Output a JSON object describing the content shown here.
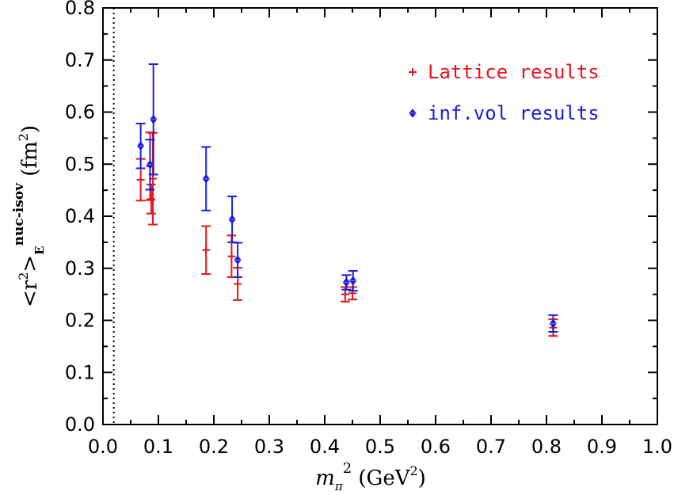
{
  "chart_data": {
    "type": "scatter",
    "title": "",
    "xlabel": {
      "base": "m",
      "sub": "π",
      "sup": "2",
      "units": " (GeV",
      "units_sup": "2",
      "units_close": ")"
    },
    "ylabel": {
      "open": "<r",
      "sup1": "2",
      "close": ">",
      "sub": "E",
      "sup2": "nuc-isov",
      "units": " (fm",
      "units_sup": "2",
      "units_close": ")"
    },
    "xlim": [
      0,
      1.0
    ],
    "ylim": [
      0,
      0.8
    ],
    "x_ticks": [
      "0.0",
      "0.1",
      "0.2",
      "0.3",
      "0.4",
      "0.5",
      "0.6",
      "0.7",
      "0.8",
      "0.9",
      "1.0"
    ],
    "y_ticks": [
      "0.0",
      "0.1",
      "0.2",
      "0.3",
      "0.4",
      "0.5",
      "0.6",
      "0.7",
      "0.8"
    ],
    "grid": false,
    "vertical_line": {
      "x": 0.0195,
      "style": "dotted"
    },
    "legend_position": "top-right",
    "series": [
      {
        "name": "Lattice results",
        "marker": "plus",
        "color": "#e8141c",
        "points": [
          {
            "x": 0.068,
            "y": 0.47,
            "yerr": 0.04
          },
          {
            "x": 0.085,
            "y": 0.496,
            "yerr": 0.065
          },
          {
            "x": 0.09,
            "y": 0.472,
            "yerr": 0.088
          },
          {
            "x": 0.087,
            "y": 0.433,
            "yerr": 0.028
          },
          {
            "x": 0.186,
            "y": 0.335,
            "yerr": 0.046
          },
          {
            "x": 0.232,
            "y": 0.323,
            "yerr": 0.04
          },
          {
            "x": 0.243,
            "y": 0.27,
            "yerr": 0.031
          },
          {
            "x": 0.437,
            "y": 0.25,
            "yerr": 0.014
          },
          {
            "x": 0.45,
            "y": 0.252,
            "yerr": 0.012
          },
          {
            "x": 0.812,
            "y": 0.186,
            "yerr": 0.016
          }
        ]
      },
      {
        "name": "inf.vol results",
        "marker": "diamond",
        "color": "#1c1cdc",
        "points": [
          {
            "x": 0.068,
            "y": 0.535,
            "yerr": 0.043
          },
          {
            "x": 0.085,
            "y": 0.499,
            "yerr": 0.048
          },
          {
            "x": 0.091,
            "y": 0.586,
            "yerr": 0.106
          },
          {
            "x": 0.186,
            "y": 0.472,
            "yerr": 0.061
          },
          {
            "x": 0.233,
            "y": 0.394,
            "yerr": 0.044
          },
          {
            "x": 0.243,
            "y": 0.316,
            "yerr": 0.033
          },
          {
            "x": 0.439,
            "y": 0.273,
            "yerr": 0.014
          },
          {
            "x": 0.451,
            "y": 0.276,
            "yerr": 0.019
          },
          {
            "x": 0.812,
            "y": 0.194,
            "yerr": 0.016
          }
        ]
      }
    ]
  }
}
